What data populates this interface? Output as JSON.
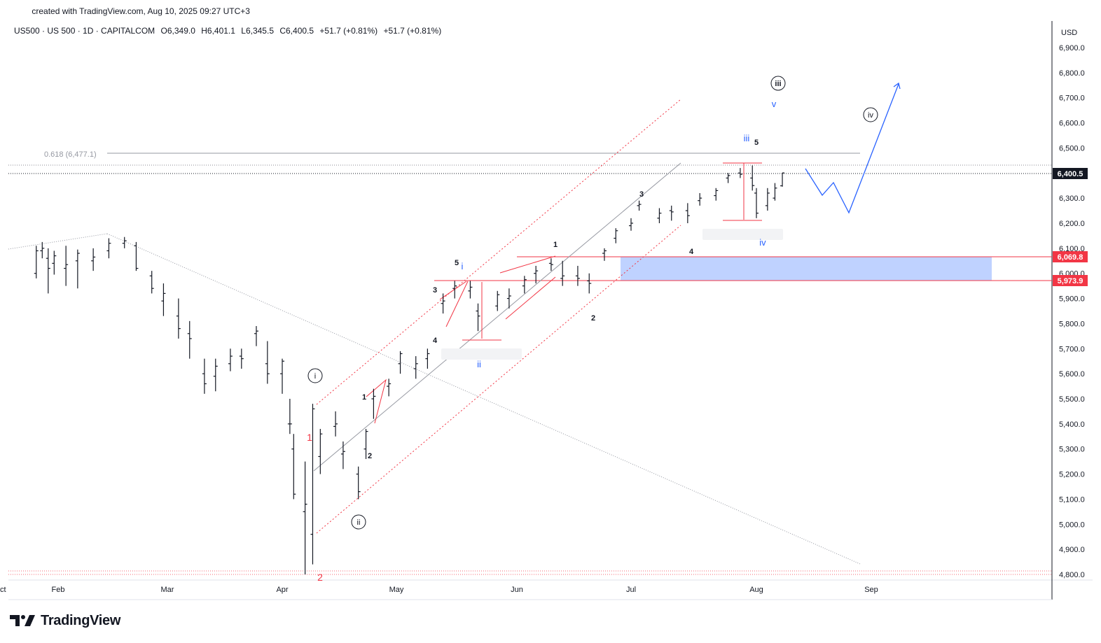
{
  "header": {
    "created_text": "created with TradingView.com, Aug 10, 2025 09:27 UTC+3"
  },
  "legend": {
    "symbol": "US500 · US 500 · 1D · CAPITALCOM",
    "open": "O6,349.0",
    "high": "H6,401.1",
    "low": "L6,345.5",
    "close": "C6,400.5",
    "change": "+51.7 (+0.81%)",
    "change2": "+51.7 (+0.81%)"
  },
  "price_axis": {
    "currency": "USD",
    "ticks": [
      "6,900.0",
      "6,800.0",
      "6,700.0",
      "6,600.0",
      "6,500.0",
      "6,400.0",
      "6,300.0",
      "6,200.0",
      "6,100.0",
      "6,000.0",
      "5,900.0",
      "5,800.0",
      "5,700.0",
      "5,600.0",
      "5,500.0",
      "5,400.0",
      "5,300.0",
      "5,200.0",
      "5,100.0",
      "5,000.0",
      "4,900.0",
      "4,800.0"
    ],
    "last_price": "6,400.5",
    "level_upper": "6,069.8",
    "level_lower": "5,973.9"
  },
  "time_axis": {
    "labels": [
      "Feb",
      "Mar",
      "Apr",
      "May",
      "Jun",
      "Jul",
      "Aug",
      "Sep",
      "Oct"
    ]
  },
  "fib": {
    "label": "0.618 (6,477.1)"
  },
  "waves": {
    "circled_i": "i",
    "circled_ii": "ii",
    "circled_iii": "iii",
    "circled_iv": "iv",
    "red_1": "1",
    "red_2": "2",
    "blue_i": "i",
    "blue_ii": "ii",
    "blue_iii": "iii",
    "blue_iv": "iv",
    "blue_v": "v",
    "sub_1a": "1",
    "sub_2a": "2",
    "sub_3a": "3",
    "sub_4a": "4",
    "sub_5a": "5",
    "sub_1b": "1",
    "sub_2b": "2",
    "sub_3b": "3",
    "sub_4b": "4",
    "sub_5b": "5"
  },
  "colors": {
    "candles": "#131722",
    "red_level": "#f23645",
    "blue_zone": "#bcd0ff",
    "blue_wave": "#2962ff",
    "gray_line": "#9598a1"
  },
  "brand": {
    "name": "TradingView"
  },
  "chart_data": {
    "type": "candlestick",
    "title": "US500 · US 500 · 1D · CAPITALCOM",
    "ylim": [
      4800,
      6950
    ],
    "y_ticks": [
      4800,
      4900,
      5000,
      5100,
      5200,
      5300,
      5400,
      5500,
      5600,
      5700,
      5800,
      5900,
      6000,
      6100,
      6200,
      6300,
      6400,
      6500,
      6600,
      6700,
      6800,
      6900
    ],
    "x_months": [
      "Feb",
      "Mar",
      "Apr",
      "May",
      "Jun",
      "Jul",
      "Aug",
      "Sep",
      "Oct"
    ],
    "series": [
      {
        "x": "Jan 21",
        "o": 6000,
        "h": 6110,
        "l": 5980,
        "c": 6090
      },
      {
        "x": "Jan 24",
        "o": 6090,
        "h": 6125,
        "l": 6060,
        "c": 6100
      },
      {
        "x": "Jan 27",
        "o": 6060,
        "h": 6100,
        "l": 5920,
        "c": 6020
      },
      {
        "x": "Jan 30",
        "o": 6040,
        "h": 6090,
        "l": 5995,
        "c": 6070
      },
      {
        "x": "Feb 3",
        "o": 6020,
        "h": 6110,
        "l": 5950,
        "c": 6035
      },
      {
        "x": "Feb 6",
        "o": 6050,
        "h": 6095,
        "l": 5940,
        "c": 6080
      },
      {
        "x": "Feb 10",
        "o": 6050,
        "h": 6100,
        "l": 6010,
        "c": 6065
      },
      {
        "x": "Feb 14",
        "o": 6090,
        "h": 6140,
        "l": 6060,
        "c": 6120
      },
      {
        "x": "Feb 18",
        "o": 6120,
        "h": 6145,
        "l": 6100,
        "c": 6130
      },
      {
        "x": "Feb 21",
        "o": 6110,
        "h": 6125,
        "l": 6010,
        "c": 6020
      },
      {
        "x": "Feb 25",
        "o": 5990,
        "h": 6010,
        "l": 5920,
        "c": 5940
      },
      {
        "x": "Feb 28",
        "o": 5890,
        "h": 5960,
        "l": 5830,
        "c": 5920
      },
      {
        "x": "Mar 4",
        "o": 5830,
        "h": 5900,
        "l": 5740,
        "c": 5780
      },
      {
        "x": "Mar 7",
        "o": 5760,
        "h": 5810,
        "l": 5660,
        "c": 5740
      },
      {
        "x": "Mar 11",
        "o": 5600,
        "h": 5660,
        "l": 5520,
        "c": 5560
      },
      {
        "x": "Mar 14",
        "o": 5590,
        "h": 5660,
        "l": 5530,
        "c": 5630
      },
      {
        "x": "Mar 18",
        "o": 5640,
        "h": 5700,
        "l": 5610,
        "c": 5670
      },
      {
        "x": "Mar 21",
        "o": 5670,
        "h": 5700,
        "l": 5620,
        "c": 5660
      },
      {
        "x": "Mar 25",
        "o": 5760,
        "h": 5790,
        "l": 5710,
        "c": 5770
      },
      {
        "x": "Mar 28",
        "o": 5640,
        "h": 5730,
        "l": 5560,
        "c": 5600
      },
      {
        "x": "Apr 1",
        "o": 5600,
        "h": 5660,
        "l": 5520,
        "c": 5650
      },
      {
        "x": "Apr 3",
        "o": 5400,
        "h": 5500,
        "l": 5360,
        "c": 5400
      },
      {
        "x": "Apr 4",
        "o": 5300,
        "h": 5360,
        "l": 5100,
        "c": 5120
      },
      {
        "x": "Apr 7",
        "o": 5050,
        "h": 5250,
        "l": 4800,
        "c": 5080
      },
      {
        "x": "Apr 9",
        "o": 4960,
        "h": 5480,
        "l": 4840,
        "c": 5460
      },
      {
        "x": "Apr 11",
        "o": 5270,
        "h": 5380,
        "l": 5200,
        "c": 5360
      },
      {
        "x": "Apr 15",
        "o": 5390,
        "h": 5450,
        "l": 5350,
        "c": 5400
      },
      {
        "x": "Apr 17",
        "o": 5280,
        "h": 5330,
        "l": 5220,
        "c": 5290
      },
      {
        "x": "Apr 21",
        "o": 5200,
        "h": 5230,
        "l": 5100,
        "c": 5130
      },
      {
        "x": "Apr 23",
        "o": 5300,
        "h": 5380,
        "l": 5260,
        "c": 5370
      },
      {
        "x": "Apr 25",
        "o": 5500,
        "h": 5540,
        "l": 5420,
        "c": 5510
      },
      {
        "x": "Apr 29",
        "o": 5550,
        "h": 5580,
        "l": 5510,
        "c": 5560
      },
      {
        "x": "May 2",
        "o": 5640,
        "h": 5690,
        "l": 5600,
        "c": 5680
      },
      {
        "x": "May 6",
        "o": 5620,
        "h": 5670,
        "l": 5580,
        "c": 5640
      },
      {
        "x": "May 9",
        "o": 5660,
        "h": 5700,
        "l": 5620,
        "c": 5680
      },
      {
        "x": "May 13",
        "o": 5880,
        "h": 5920,
        "l": 5840,
        "c": 5890
      },
      {
        "x": "May 16",
        "o": 5940,
        "h": 5970,
        "l": 5900,
        "c": 5950
      },
      {
        "x": "May 20",
        "o": 5930,
        "h": 5970,
        "l": 5900,
        "c": 5945
      },
      {
        "x": "May 22",
        "o": 5850,
        "h": 5880,
        "l": 5770,
        "c": 5830
      },
      {
        "x": "May 27",
        "o": 5870,
        "h": 5930,
        "l": 5850,
        "c": 5915
      },
      {
        "x": "May 30",
        "o": 5900,
        "h": 5940,
        "l": 5860,
        "c": 5910
      },
      {
        "x": "Jun 3",
        "o": 5950,
        "h": 5990,
        "l": 5920,
        "c": 5975
      },
      {
        "x": "Jun 6",
        "o": 6000,
        "h": 6030,
        "l": 5960,
        "c": 6010
      },
      {
        "x": "Jun 10",
        "o": 6040,
        "h": 6060,
        "l": 6010,
        "c": 6035
      },
      {
        "x": "Jun 13",
        "o": 5980,
        "h": 6050,
        "l": 5950,
        "c": 5990
      },
      {
        "x": "Jun 17",
        "o": 5990,
        "h": 6030,
        "l": 5950,
        "c": 5980
      },
      {
        "x": "Jun 20",
        "o": 5970,
        "h": 6000,
        "l": 5920,
        "c": 5960
      },
      {
        "x": "Jun 24",
        "o": 6080,
        "h": 6100,
        "l": 6050,
        "c": 6090
      },
      {
        "x": "Jun 27",
        "o": 6140,
        "h": 6180,
        "l": 6120,
        "c": 6170
      },
      {
        "x": "Jul 1",
        "o": 6190,
        "h": 6220,
        "l": 6170,
        "c": 6200
      },
      {
        "x": "Jul 3",
        "o": 6270,
        "h": 6290,
        "l": 6250,
        "c": 6275
      },
      {
        "x": "Jul 8",
        "o": 6220,
        "h": 6260,
        "l": 6200,
        "c": 6240
      },
      {
        "x": "Jul 11",
        "o": 6250,
        "h": 6270,
        "l": 6210,
        "c": 6245
      },
      {
        "x": "Jul 15",
        "o": 6250,
        "h": 6280,
        "l": 6200,
        "c": 6230
      },
      {
        "x": "Jul 18",
        "o": 6290,
        "h": 6320,
        "l": 6270,
        "c": 6300
      },
      {
        "x": "Jul 22",
        "o": 6310,
        "h": 6340,
        "l": 6290,
        "c": 6330
      },
      {
        "x": "Jul 25",
        "o": 6380,
        "h": 6400,
        "l": 6360,
        "c": 6390
      },
      {
        "x": "Jul 28",
        "o": 6400,
        "h": 6420,
        "l": 6380,
        "c": 6395
      },
      {
        "x": "Jul 31",
        "o": 6380,
        "h": 6430,
        "l": 6330,
        "c": 6350
      },
      {
        "x": "Aug 1",
        "o": 6320,
        "h": 6340,
        "l": 6220,
        "c": 6240
      },
      {
        "x": "Aug 4",
        "o": 6270,
        "h": 6340,
        "l": 6250,
        "c": 6320
      },
      {
        "x": "Aug 6",
        "o": 6300,
        "h": 6360,
        "l": 6290,
        "c": 6340
      },
      {
        "x": "Aug 8",
        "o": 6349,
        "h": 6401.1,
        "l": 6345.5,
        "c": 6400.5
      }
    ]
  }
}
